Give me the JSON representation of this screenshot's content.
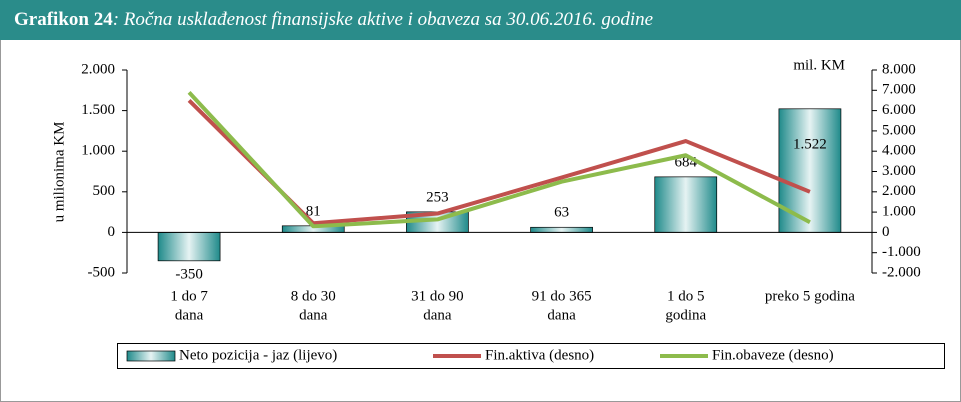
{
  "chart_data": {
    "type": "bar",
    "title_label": "Grafikon 24",
    "title": ": Ročna usklađenost finansijske aktive i obaveza sa 30.06.2016. godine",
    "ylabel": "u milionima KM",
    "y2label": "mil. KM",
    "categories": [
      [
        "1 do 7",
        "dana"
      ],
      [
        "8 do 30",
        "dana"
      ],
      [
        "31 do 90",
        "dana"
      ],
      [
        "91 do 365",
        "dana"
      ],
      [
        "1 do 5",
        "godina"
      ],
      [
        "preko 5 godina"
      ]
    ],
    "ylim": [
      -500,
      2000
    ],
    "yticks": [
      {
        "value": -500,
        "label": "-500"
      },
      0,
      500,
      {
        "value": 1000,
        "label": "1.000"
      },
      {
        "value": 1500,
        "label": "1.500"
      },
      {
        "value": 2000,
        "label": "2.000"
      }
    ],
    "y2lim": [
      -2000,
      8000
    ],
    "y2ticks": [
      {
        "value": -2000,
        "label": "-2.000"
      },
      {
        "value": -1000,
        "label": "-1.000"
      },
      0,
      {
        "value": 1000,
        "label": "1.000"
      },
      {
        "value": 2000,
        "label": "2.000"
      },
      {
        "value": 3000,
        "label": "3.000"
      },
      {
        "value": 4000,
        "label": "4.000"
      },
      {
        "value": 5000,
        "label": "5.000"
      },
      {
        "value": 6000,
        "label": "6.000"
      },
      {
        "value": 7000,
        "label": "7.000"
      },
      {
        "value": 8000,
        "label": "8.000"
      }
    ],
    "legend": "bottom",
    "series": [
      {
        "name": "Neto pozicija - jaz (lijevo)",
        "type": "bar",
        "color": "#1f8a8a",
        "values": [
          -350,
          81,
          253,
          63,
          684,
          1522
        ],
        "value_labels": [
          "-350",
          "81",
          "253",
          "63",
          "684",
          "1.522"
        ]
      },
      {
        "name": "Fin.aktiva (desno)",
        "type": "line",
        "axis": "y2",
        "color": "#c0504d",
        "values": [
          6500,
          450,
          930,
          2700,
          4500,
          2000
        ]
      },
      {
        "name": "Fin.obaveze (desno)",
        "type": "line",
        "axis": "y2",
        "color": "#8dbb4c",
        "values": [
          6900,
          300,
          640,
          2500,
          3800,
          500
        ]
      }
    ]
  }
}
